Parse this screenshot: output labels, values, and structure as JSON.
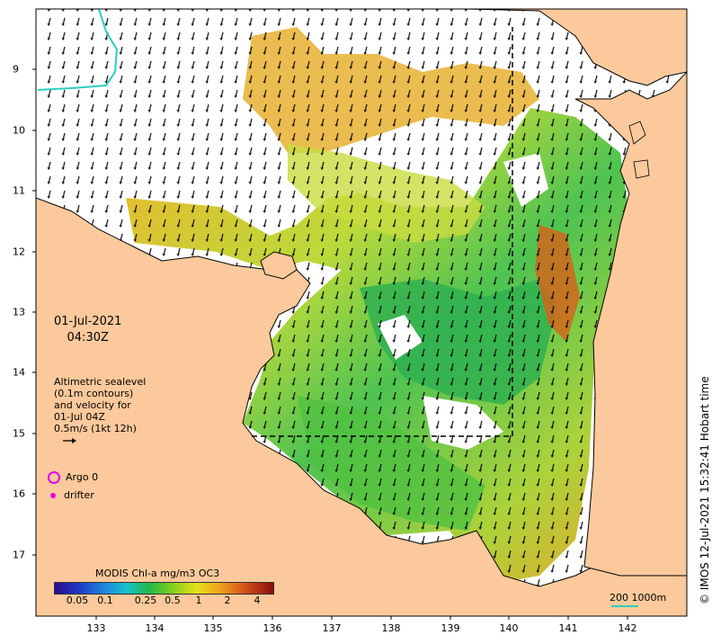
{
  "map": {
    "lon_ticks": [
      "133",
      "134",
      "135",
      "136",
      "137",
      "138",
      "139",
      "140",
      "141",
      "142"
    ],
    "lat_ticks": [
      "9",
      "10",
      "11",
      "12",
      "13",
      "14",
      "15",
      "16",
      "17"
    ],
    "lon_range": [
      132.0,
      143.0
    ],
    "lat_range": [
      -8.2,
      -17.8
    ],
    "colors": {
      "land": "#fbc99b",
      "ocean": "#ffffff",
      "coast": "#000000",
      "argo": "#e800e8",
      "scale": "#2ad0c0"
    }
  },
  "date": {
    "line1": "01-Jul-2021",
    "line2": "04:30Z"
  },
  "altimetry": {
    "line1": "Altimetric sealevel",
    "line2": "(0.1m contours)",
    "line3": "and velocity for",
    "line4": "01-Jul 04Z",
    "line5": "0.5m/s (1kt 12h)"
  },
  "legend": {
    "argo": "Argo 0",
    "drifter": "drifter"
  },
  "colorbar": {
    "title": "MODIS Chl-a mg/m3 OC3",
    "ticks": [
      "0.05",
      "0.1",
      "0.25",
      "0.5",
      "1",
      "2",
      "4"
    ]
  },
  "scale": {
    "label": "200  1000m"
  },
  "copyright": "© IMOS 12-Jul-2021 15:32:41 Hobart time"
}
